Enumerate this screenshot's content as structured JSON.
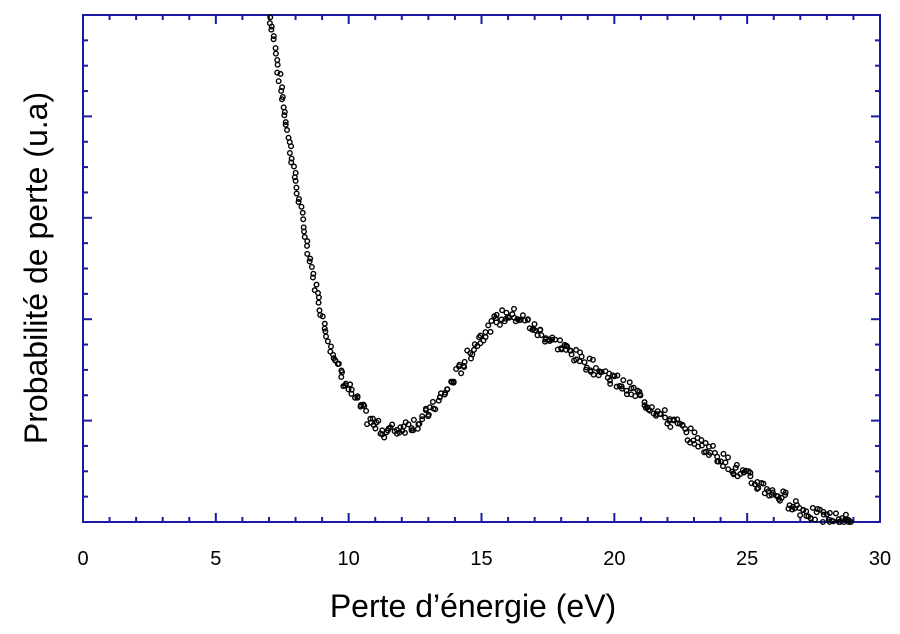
{
  "chart_data": {
    "type": "scatter",
    "title": "",
    "xlabel": "Perte d’énergie (eV)",
    "ylabel": "Probabilité de perte (u.a)",
    "xlim": [
      0,
      30
    ],
    "ylim": [
      0,
      10
    ],
    "x_ticks": [
      "0",
      "5",
      "10",
      "15",
      "20",
      "25",
      "30"
    ],
    "y_tick_labels": "none",
    "grid": false,
    "legend": "none",
    "axis_color": "#1a1aa0",
    "marker": "open-circle",
    "marker_color": "#000000",
    "series": [
      {
        "points": [
          [
            7.05,
            9.95
          ],
          [
            7.2,
            9.5
          ],
          [
            7.35,
            8.9
          ],
          [
            7.5,
            8.4
          ],
          [
            7.65,
            7.9
          ],
          [
            7.8,
            7.4
          ],
          [
            7.95,
            6.9
          ],
          [
            8.1,
            6.4
          ],
          [
            8.3,
            5.85
          ],
          [
            8.5,
            5.3
          ],
          [
            8.7,
            4.8
          ],
          [
            8.9,
            4.3
          ],
          [
            9.1,
            3.85
          ],
          [
            9.35,
            3.4
          ],
          [
            9.6,
            3.05
          ],
          [
            9.85,
            2.8
          ],
          [
            10.1,
            2.55
          ],
          [
            10.4,
            2.3
          ],
          [
            10.7,
            2.05
          ],
          [
            11.0,
            1.9
          ],
          [
            11.3,
            1.8
          ],
          [
            11.6,
            1.8
          ],
          [
            11.9,
            1.85
          ],
          [
            12.2,
            1.9
          ],
          [
            12.5,
            1.95
          ],
          [
            12.8,
            2.05
          ],
          [
            13.1,
            2.2
          ],
          [
            13.4,
            2.4
          ],
          [
            13.7,
            2.6
          ],
          [
            14.0,
            2.85
          ],
          [
            14.3,
            3.1
          ],
          [
            14.6,
            3.35
          ],
          [
            14.9,
            3.6
          ],
          [
            15.2,
            3.8
          ],
          [
            15.5,
            3.95
          ],
          [
            15.8,
            4.05
          ],
          [
            16.1,
            4.1
          ],
          [
            16.4,
            4.05
          ],
          [
            16.7,
            3.95
          ],
          [
            17.0,
            3.8
          ],
          [
            17.3,
            3.7
          ],
          [
            17.6,
            3.6
          ],
          [
            17.9,
            3.5
          ],
          [
            18.2,
            3.4
          ],
          [
            18.5,
            3.3
          ],
          [
            18.8,
            3.2
          ],
          [
            19.1,
            3.1
          ],
          [
            19.4,
            3.0
          ],
          [
            19.7,
            2.9
          ],
          [
            20.0,
            2.8
          ],
          [
            20.3,
            2.7
          ],
          [
            20.6,
            2.6
          ],
          [
            20.9,
            2.5
          ],
          [
            21.2,
            2.35
          ],
          [
            21.5,
            2.25
          ],
          [
            21.8,
            2.1
          ],
          [
            22.1,
            2.0
          ],
          [
            22.4,
            1.9
          ],
          [
            22.7,
            1.75
          ],
          [
            23.0,
            1.65
          ],
          [
            23.3,
            1.5
          ],
          [
            23.6,
            1.45
          ],
          [
            23.9,
            1.3
          ],
          [
            24.2,
            1.2
          ],
          [
            24.5,
            1.05
          ],
          [
            24.8,
            0.95
          ],
          [
            25.1,
            0.85
          ],
          [
            25.4,
            0.75
          ],
          [
            25.7,
            0.65
          ],
          [
            26.0,
            0.55
          ],
          [
            26.3,
            0.5
          ],
          [
            26.6,
            0.4
          ],
          [
            26.9,
            0.3
          ],
          [
            27.2,
            0.2
          ],
          [
            27.5,
            0.15
          ],
          [
            27.8,
            0.1
          ],
          [
            28.1,
            0.08
          ],
          [
            28.4,
            0.05
          ],
          [
            28.7,
            0.02
          ],
          [
            28.9,
            0.0
          ]
        ]
      }
    ]
  }
}
